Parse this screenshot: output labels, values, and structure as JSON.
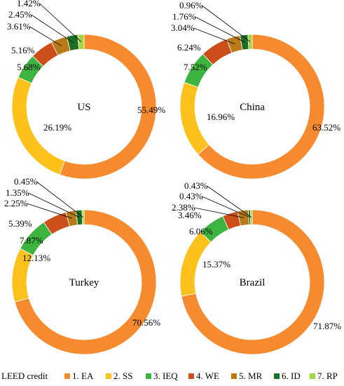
{
  "chart_data": {
    "type": "donut",
    "legend_title": "LEED credit",
    "legend_position": "bottom",
    "categories": [
      "1. EA",
      "2. SS",
      "3. IEQ",
      "4. WE",
      "5. MR",
      "6. ID",
      "7. RP"
    ],
    "colors": [
      "#f58a2f",
      "#fcc21b",
      "#3db43f",
      "#cc4f1b",
      "#b87b15",
      "#1f6e25",
      "#a6d43d"
    ],
    "charts": [
      {
        "label": "US",
        "values": [
          55.49,
          26.19,
          5.68,
          5.16,
          3.61,
          2.45,
          1.42
        ],
        "labels": [
          "55.49%",
          "26.19%",
          "5.68%",
          "5.16%",
          "3.61%",
          "2.45%",
          "1.42%"
        ]
      },
      {
        "label": "China",
        "values": [
          63.52,
          16.96,
          7.52,
          6.24,
          3.04,
          1.76,
          0.96
        ],
        "labels": [
          "63.52%",
          "16.96%",
          "7.52%",
          "6.24%",
          "3.04%",
          "1.76%",
          "0.96%"
        ]
      },
      {
        "label": "Turkey",
        "values": [
          70.56,
          12.13,
          7.87,
          5.39,
          2.25,
          1.35,
          0.45
        ],
        "labels": [
          "70.56%",
          "12.13%",
          "7.87%",
          "5.39%",
          "2.25%",
          "1.35%",
          "0.45%"
        ]
      },
      {
        "label": "Brazil",
        "values": [
          71.87,
          15.37,
          6.06,
          3.46,
          2.38,
          0.43,
          0.43
        ],
        "labels": [
          "71.87%",
          "15.37%",
          "6.06%",
          "3.46%",
          "2.38%",
          "0.43%",
          "0.43%"
        ]
      }
    ]
  }
}
